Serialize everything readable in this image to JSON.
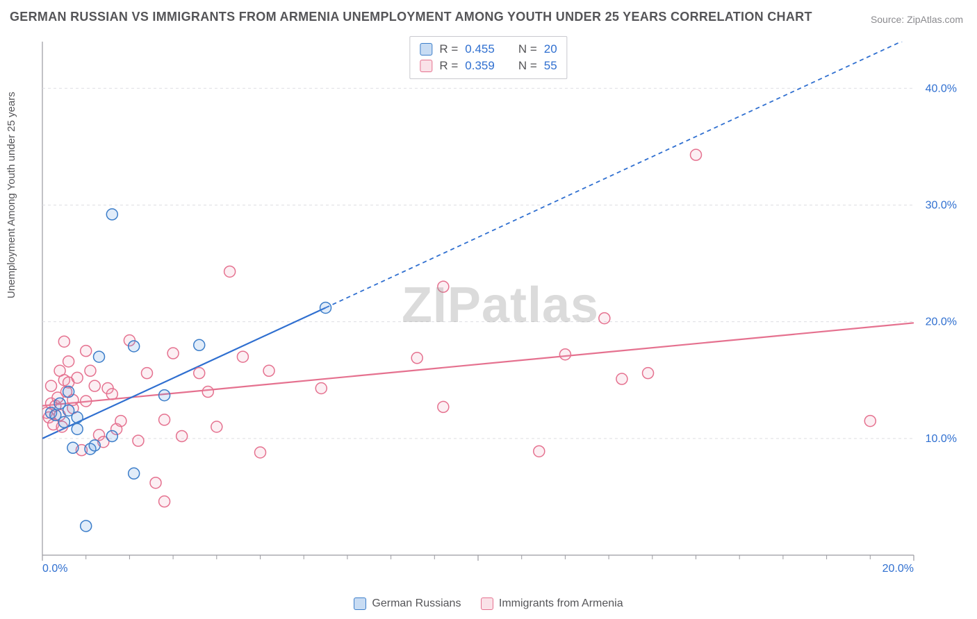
{
  "title": "GERMAN RUSSIAN VS IMMIGRANTS FROM ARMENIA UNEMPLOYMENT AMONG YOUTH UNDER 25 YEARS CORRELATION CHART",
  "source": "Source: ZipAtlas.com",
  "watermark": "ZIPatlas",
  "y_axis_label": "Unemployment Among Youth under 25 years",
  "chart": {
    "type": "scatter",
    "plot_bg": "#ffffff",
    "grid_color": "#dddde2",
    "axis_color": "#9a9aa0",
    "xlim": [
      0,
      20
    ],
    "ylim": [
      0,
      44
    ],
    "x_ticks": [
      0,
      10,
      20
    ],
    "x_tick_labels": [
      "0.0%",
      "",
      "20.0%"
    ],
    "x_minor_ticks": [
      1,
      2,
      3,
      4,
      5,
      6,
      7,
      8,
      9,
      11,
      12,
      13,
      14,
      15,
      16,
      17,
      18,
      19
    ],
    "y_ticks": [
      10,
      20,
      30,
      40
    ],
    "y_tick_labels": [
      "10.0%",
      "20.0%",
      "30.0%",
      "40.0%"
    ],
    "marker_radius": 8,
    "marker_stroke_width": 1.5,
    "marker_fill_opacity": 0.18,
    "trend_solid_width": 2.2,
    "trend_dash_width": 1.8,
    "trend_dash": "6 5"
  },
  "series": {
    "blue": {
      "label": "German Russians",
      "color": "#5b97db",
      "stroke": "#3b7dc9",
      "trend_color": "#2f6fd0",
      "R": "0.455",
      "N": "20",
      "trend_p1": [
        0,
        10
      ],
      "trend_p2": [
        6.5,
        21.2
      ],
      "trend_ext": [
        20,
        44.5
      ],
      "points": [
        [
          0.2,
          12.2
        ],
        [
          0.3,
          12.0
        ],
        [
          0.4,
          13.0
        ],
        [
          0.5,
          11.4
        ],
        [
          0.6,
          12.4
        ],
        [
          0.6,
          14.0
        ],
        [
          0.7,
          9.2
        ],
        [
          0.8,
          10.8
        ],
        [
          0.8,
          11.8
        ],
        [
          1.1,
          9.1
        ],
        [
          1.2,
          9.4
        ],
        [
          1.0,
          2.5
        ],
        [
          1.6,
          29.2
        ],
        [
          2.1,
          17.9
        ],
        [
          2.1,
          7.0
        ],
        [
          1.6,
          10.2
        ],
        [
          1.3,
          17.0
        ],
        [
          2.8,
          13.7
        ],
        [
          3.6,
          18.0
        ],
        [
          6.5,
          21.2
        ]
      ]
    },
    "pink": {
      "label": "Immigrants from Armenia",
      "color": "#f1a7bb",
      "stroke": "#e5718f",
      "trend_color": "#e5718f",
      "R": "0.359",
      "N": "55",
      "trend_p1": [
        0,
        12.8
      ],
      "trend_p2": [
        20,
        19.9
      ],
      "points": [
        [
          0.1,
          12.2
        ],
        [
          0.15,
          11.8
        ],
        [
          0.2,
          13.0
        ],
        [
          0.2,
          14.5
        ],
        [
          0.25,
          11.2
        ],
        [
          0.3,
          12.8
        ],
        [
          0.35,
          13.5
        ],
        [
          0.4,
          15.8
        ],
        [
          0.4,
          12.0
        ],
        [
          0.45,
          11.0
        ],
        [
          0.5,
          18.3
        ],
        [
          0.5,
          15.0
        ],
        [
          0.55,
          14.0
        ],
        [
          0.6,
          16.6
        ],
        [
          0.6,
          14.8
        ],
        [
          0.7,
          12.6
        ],
        [
          0.7,
          13.3
        ],
        [
          0.8,
          15.2
        ],
        [
          0.9,
          9.0
        ],
        [
          1.0,
          13.2
        ],
        [
          1.0,
          17.5
        ],
        [
          1.1,
          15.8
        ],
        [
          1.2,
          14.5
        ],
        [
          1.3,
          10.3
        ],
        [
          1.4,
          9.7
        ],
        [
          1.5,
          14.3
        ],
        [
          1.6,
          13.8
        ],
        [
          1.7,
          10.8
        ],
        [
          1.8,
          11.5
        ],
        [
          2.0,
          18.4
        ],
        [
          2.2,
          9.8
        ],
        [
          2.4,
          15.6
        ],
        [
          2.6,
          6.2
        ],
        [
          2.8,
          11.6
        ],
        [
          2.8,
          4.6
        ],
        [
          3.0,
          17.3
        ],
        [
          3.2,
          10.2
        ],
        [
          3.6,
          15.6
        ],
        [
          3.8,
          14.0
        ],
        [
          4.0,
          11.0
        ],
        [
          4.3,
          24.3
        ],
        [
          4.6,
          17.0
        ],
        [
          5.0,
          8.8
        ],
        [
          5.2,
          15.8
        ],
        [
          6.4,
          14.3
        ],
        [
          8.6,
          16.9
        ],
        [
          9.2,
          23.0
        ],
        [
          9.2,
          12.7
        ],
        [
          11.4,
          8.9
        ],
        [
          12.0,
          17.2
        ],
        [
          12.9,
          20.3
        ],
        [
          13.3,
          15.1
        ],
        [
          13.9,
          15.6
        ],
        [
          15.0,
          34.3
        ],
        [
          19.0,
          11.5
        ]
      ]
    }
  }
}
